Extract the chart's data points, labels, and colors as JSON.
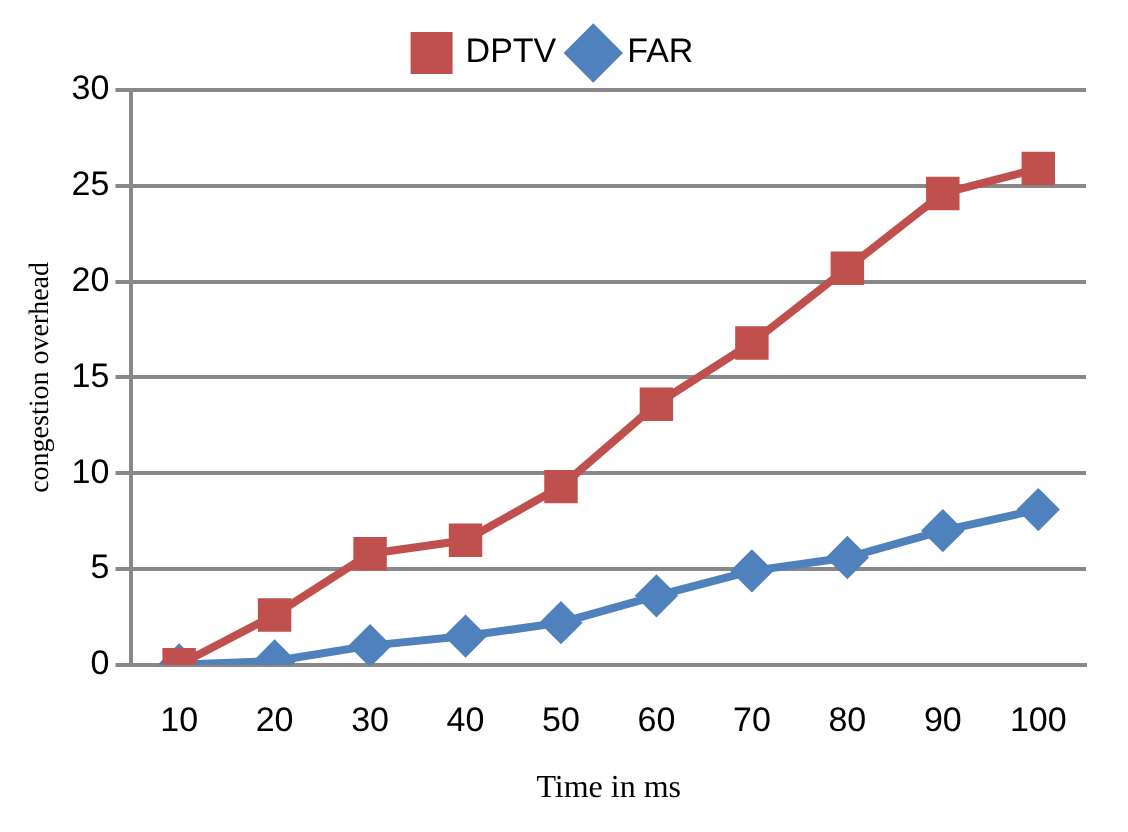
{
  "chart_data": {
    "type": "line",
    "xlabel": "Time in ms",
    "ylabel": "congestion overhead",
    "categories": [
      "10",
      "20",
      "30",
      "40",
      "50",
      "60",
      "70",
      "80",
      "90",
      "100"
    ],
    "series": [
      {
        "name": "DPTV",
        "color": "#c0504d",
        "marker": "square",
        "values": [
          0,
          2.6,
          5.8,
          6.5,
          9.3,
          13.6,
          16.8,
          20.7,
          24.6,
          25.9
        ]
      },
      {
        "name": "FAR",
        "color": "#4f81bd",
        "marker": "diamond",
        "values": [
          0,
          0.2,
          1,
          1.5,
          2.2,
          3.6,
          4.9,
          5.6,
          7,
          8.1
        ]
      }
    ],
    "ylim": [
      0,
      30
    ],
    "yticks": [
      0,
      5,
      10,
      15,
      20,
      25,
      30
    ],
    "grid": "y",
    "legend": "top"
  }
}
